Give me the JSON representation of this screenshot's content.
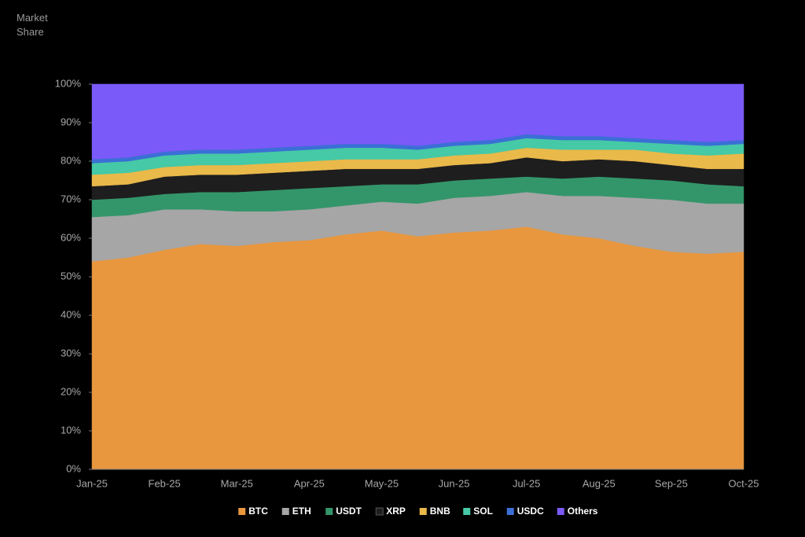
{
  "chart_data": {
    "type": "stacked-area",
    "y_label": "Market Share",
    "categories": [
      "Jan-25",
      null,
      "Feb-25",
      null,
      "Mar-25",
      null,
      "Apr-25",
      null,
      "May-25",
      null,
      "Jun-25",
      null,
      "Jul-25",
      null,
      "Aug-25",
      null,
      "Sep-25",
      null,
      "Oct-25"
    ],
    "series": [
      {
        "name": "BTC",
        "color": "#e8973f",
        "values": [
          54,
          55,
          57,
          58.5,
          58,
          59,
          59.5,
          61,
          62,
          60.5,
          61.5,
          62,
          63,
          61,
          60,
          58,
          56.5,
          56,
          56.5
        ]
      },
      {
        "name": "ETH",
        "color": "#a6a6a6",
        "values": [
          11.5,
          11,
          10.5,
          9,
          9,
          8,
          8,
          7.5,
          7.5,
          8.5,
          9,
          9,
          9,
          10,
          11,
          12.5,
          13.5,
          13,
          12.5
        ]
      },
      {
        "name": "USDT",
        "color": "#33966a",
        "values": [
          4.5,
          4.5,
          4,
          4.5,
          5,
          5.5,
          5.5,
          5,
          4.5,
          5,
          4.5,
          4.5,
          4,
          4.5,
          5,
          5,
          5,
          5,
          4.5
        ]
      },
      {
        "name": "XRP",
        "color": "#1e1e1e",
        "values": [
          3.5,
          3.5,
          4.5,
          4.5,
          4.5,
          4.5,
          4.5,
          4.5,
          4,
          4,
          4,
          4,
          5,
          4.5,
          4.5,
          4.5,
          4,
          4,
          4.5
        ]
      },
      {
        "name": "BNB",
        "color": "#e9b94a",
        "values": [
          3,
          3,
          2.5,
          2.5,
          2.5,
          2.5,
          2.5,
          2.5,
          2.5,
          2.5,
          2.5,
          2.5,
          2.5,
          3,
          2.5,
          3,
          3,
          3.5,
          4
        ]
      },
      {
        "name": "SOL",
        "color": "#45c9a6",
        "values": [
          3,
          3,
          3,
          3,
          3,
          3,
          3,
          3,
          3,
          2.5,
          2.5,
          2.5,
          2.5,
          2.5,
          2.5,
          2,
          2.5,
          2.5,
          2.5
        ]
      },
      {
        "name": "USDC",
        "color": "#3b6fd6",
        "values": [
          1,
          1,
          1,
          1,
          1,
          1,
          1,
          1,
          1,
          1,
          1,
          1,
          1,
          1,
          1,
          1,
          1,
          1,
          1
        ]
      },
      {
        "name": "Others",
        "color": "#7a5af8",
        "values": [
          19.5,
          19,
          17.5,
          17,
          17,
          16.5,
          16,
          15.5,
          15.5,
          16,
          15,
          14.5,
          13,
          13.5,
          13.5,
          14,
          14.5,
          15,
          14.5
        ]
      }
    ],
    "ylim": [
      0,
      100
    ],
    "yticks": [
      {
        "value": 0,
        "label": "0%"
      },
      {
        "value": 10,
        "label": "10%"
      },
      {
        "value": 20,
        "label": "20%"
      },
      {
        "value": 30,
        "label": "30%"
      },
      {
        "value": 40,
        "label": "40%"
      },
      {
        "value": 50,
        "label": "50%"
      },
      {
        "value": 60,
        "label": "60%"
      },
      {
        "value": 70,
        "label": "70%"
      },
      {
        "value": 80,
        "label": "80%"
      },
      {
        "value": 90,
        "label": "90%"
      },
      {
        "value": 100,
        "label": "100%"
      }
    ],
    "legend": "bottom"
  }
}
